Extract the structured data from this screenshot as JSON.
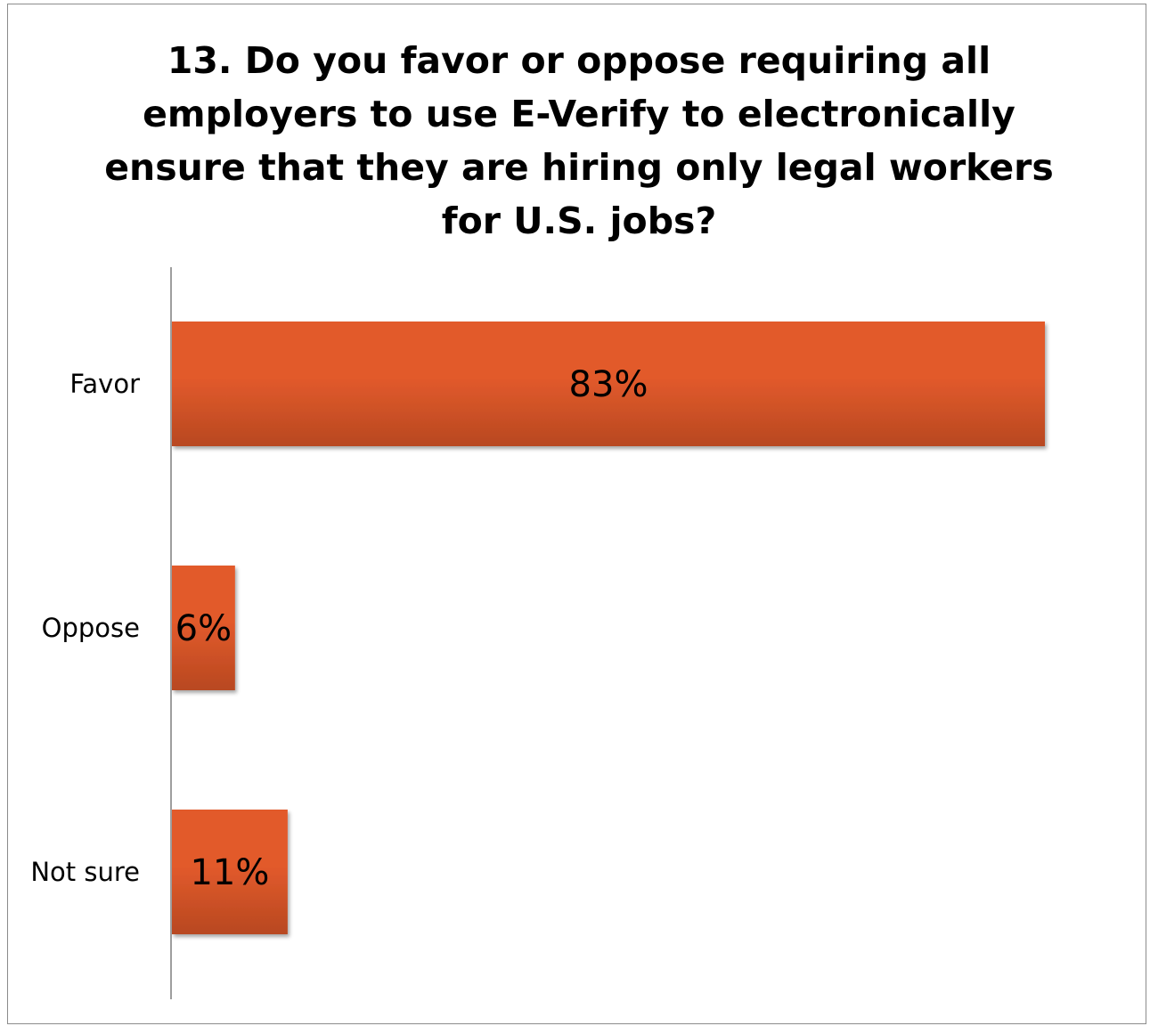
{
  "chart_data": {
    "type": "bar",
    "orientation": "horizontal",
    "title": "13. Do you favor or oppose requiring all employers to use E-Verify to electronically ensure that they are hiring only legal workers for U.S. jobs?",
    "categories": [
      "Favor",
      "Oppose",
      "Not sure"
    ],
    "values": [
      83,
      6,
      11
    ],
    "data_labels": [
      "83%",
      "6%",
      "11%"
    ],
    "unit": "%",
    "xlim": [
      0,
      83
    ],
    "grid": false,
    "legend": "none",
    "bar_color": "#e25a2c",
    "bar_color_dark": "#b84820"
  }
}
